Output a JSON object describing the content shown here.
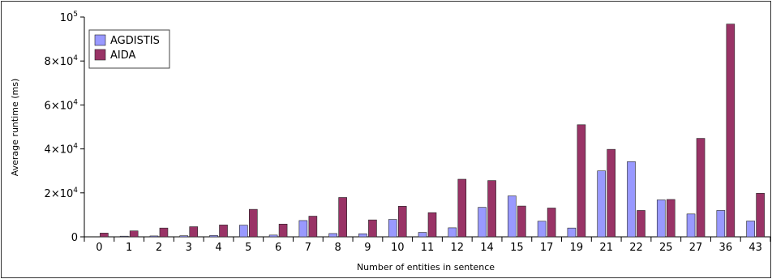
{
  "chart_data": {
    "type": "bar",
    "xlabel": "Number of entities in sentence",
    "ylabel": "Average runtime (ms)",
    "ylim": [
      0,
      100000
    ],
    "yticks": [
      {
        "value": 0,
        "label": "0"
      },
      {
        "value": 20000,
        "label": "2×10",
        "exp": "4"
      },
      {
        "value": 40000,
        "label": "4×10",
        "exp": "4"
      },
      {
        "value": 60000,
        "label": "6×10",
        "exp": "4"
      },
      {
        "value": 80000,
        "label": "8×10",
        "exp": "4"
      },
      {
        "value": 100000,
        "label": "10",
        "exp": "5"
      }
    ],
    "categories": [
      "0",
      "1",
      "2",
      "3",
      "4",
      "5",
      "6",
      "7",
      "8",
      "9",
      "10",
      "11",
      "12",
      "14",
      "15",
      "17",
      "19",
      "21",
      "22",
      "25",
      "27",
      "36",
      "43"
    ],
    "series": [
      {
        "name": "AGDISTIS",
        "color": "#9999ff",
        "values": [
          0,
          300,
          400,
          500,
          600,
          5300,
          800,
          7400,
          1500,
          1400,
          7900,
          2000,
          4100,
          13400,
          18600,
          7100,
          4000,
          30000,
          34200,
          16800,
          10400,
          12000,
          7200
        ]
      },
      {
        "name": "AIDA",
        "color": "#993366",
        "values": [
          1700,
          2700,
          4000,
          4600,
          5400,
          12500,
          5800,
          9400,
          17900,
          7700,
          13900,
          11000,
          26200,
          25600,
          14000,
          13100,
          51000,
          39800,
          12000,
          17000,
          44800,
          96800,
          19800
        ]
      }
    ],
    "legend_position": "top-left",
    "grid": false
  }
}
